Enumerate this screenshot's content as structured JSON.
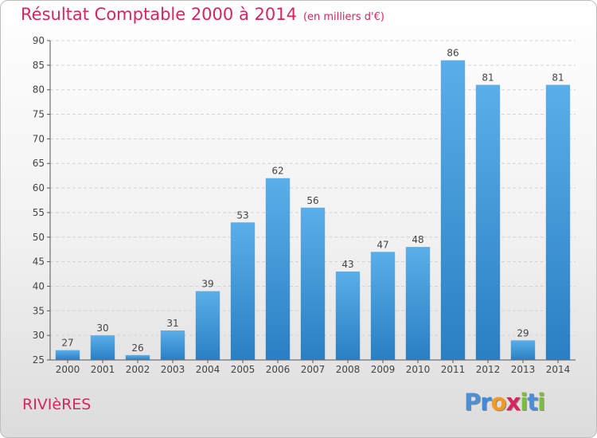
{
  "title": "Résultat Comptable 2000 à 2014",
  "subtitle": "(en milliers d'€)",
  "commune": "RIVIèRES",
  "logo": {
    "letters": [
      "P",
      "r",
      "o",
      "x",
      "i",
      "t",
      "i"
    ],
    "colors": [
      "#4a8fd8",
      "#3d8ce0",
      "#f29b1f",
      "#d6265d",
      "#7bbf3a",
      "#4a8fd8",
      "#7bbf3a"
    ]
  },
  "chart_data": {
    "type": "bar",
    "title": "Résultat Comptable 2000 à 2014",
    "subtitle": "(en milliers d'€)",
    "categories": [
      "2000",
      "2001",
      "2002",
      "2003",
      "2004",
      "2005",
      "2006",
      "2007",
      "2008",
      "2009",
      "2010",
      "2011",
      "2012",
      "2013",
      "2014"
    ],
    "values": [
      27,
      30,
      26,
      31,
      39,
      53,
      62,
      56,
      43,
      47,
      48,
      86,
      81,
      29,
      81
    ],
    "ylim": [
      25,
      90
    ],
    "yticks": [
      25,
      30,
      35,
      40,
      45,
      50,
      55,
      60,
      65,
      70,
      75,
      80,
      85,
      90
    ],
    "grid": true,
    "bar_color": "#3d93d9"
  }
}
